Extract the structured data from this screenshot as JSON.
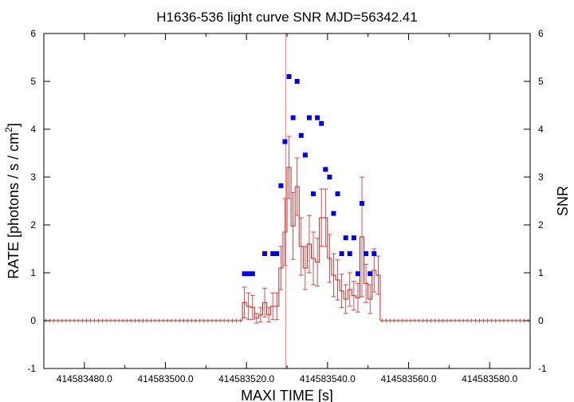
{
  "chart_data": {
    "type": "scatter",
    "title": "H1636-536 light curve  SNR MJD=56342.41",
    "xlabel": "MAXI TIME [s]",
    "ylabel": "RATE [photons / s / cm",
    "ylabel_superscript": "2",
    "ylabel_suffix": "]",
    "y2label": "SNR",
    "xlim": [
      414583470,
      414583590
    ],
    "ylim": [
      -1,
      6
    ],
    "y2lim": [
      -1,
      6
    ],
    "x_ticks": [
      414583480,
      414583500,
      414583520,
      414583540,
      414583560,
      414583580
    ],
    "x_tick_labels": [
      "414583480.0",
      "414583500.0",
      "414583520.0",
      "414583540.0",
      "414583560.0",
      "414583580.0"
    ],
    "y_ticks": [
      -1,
      0,
      1,
      2,
      3,
      4,
      5,
      6
    ],
    "y_tick_labels": [
      "-1",
      "0",
      "1",
      "2",
      "3",
      "4",
      "5",
      "6"
    ],
    "y2_ticks": [
      -1,
      0,
      1,
      2,
      3,
      4,
      5,
      6
    ],
    "y2_tick_labels": [
      "-1",
      "0",
      "1",
      "2",
      "3",
      "4",
      "5",
      "6"
    ],
    "vline_x": 414583529.7,
    "colors": {
      "rate": "#cc2222",
      "snr": "#0000ee",
      "vline": "#ff8888",
      "axis": "#000000"
    },
    "rate_bin_width": 1.0,
    "rate_series": {
      "name": "",
      "x": [
        414583519.5,
        414583520.5,
        414583521.5,
        414583522.5,
        414583523.5,
        414583524.5,
        414583525.5,
        414583526.5,
        414583527.5,
        414583528.5,
        414583529.5,
        414583530.5,
        414583531.5,
        414583532.5,
        414583533.5,
        414583534.5,
        414583535.5,
        414583536.5,
        414583537.5,
        414583538.5,
        414583539.5,
        414583540.5,
        414583541.5,
        414583542.5,
        414583543.5,
        414583544.5,
        414583545.5,
        414583546.5,
        414583547.5,
        414583548.5,
        414583549.5,
        414583550.5,
        414583551.5,
        414583552.5
      ],
      "y": [
        0.38,
        0.3,
        0.28,
        0.05,
        0.12,
        0.38,
        0.12,
        0.3,
        0.3,
        1.1,
        1.85,
        3.2,
        1.98,
        2.8,
        1.55,
        1.1,
        1.6,
        1.3,
        1.22,
        2.15,
        2.15,
        1.3,
        0.95,
        0.85,
        0.62,
        0.45,
        0.65,
        0.52,
        0.48,
        1.75,
        0.78,
        0.45,
        1.05,
        0.95
      ],
      "err": [
        0.32,
        0.28,
        0.25,
        0.1,
        0.15,
        0.3,
        0.15,
        0.28,
        0.28,
        0.45,
        0.7,
        0.65,
        0.7,
        0.6,
        0.6,
        0.45,
        0.6,
        0.55,
        0.5,
        0.6,
        0.6,
        0.5,
        0.45,
        0.42,
        0.35,
        0.3,
        0.35,
        0.3,
        0.3,
        1.25,
        0.4,
        0.3,
        0.45,
        0.4
      ]
    },
    "baseline": {
      "x_start": 414583470,
      "x_end": 414583590,
      "y": 0.0,
      "err": 0.04,
      "gap_start": 414583519,
      "gap_end": 414583553
    },
    "snr_series": {
      "name": "",
      "x": [
        414583519.5,
        414583520.5,
        414583521.5,
        414583524.5,
        414583526.5,
        414583527.5,
        414583528.5,
        414583529.5,
        414583530.5,
        414583531.5,
        414583532.5,
        414583533.5,
        414583534.5,
        414583535.5,
        414583536.5,
        414583537.5,
        414583538.5,
        414583539.5,
        414583540.5,
        414583541.5,
        414583542.5,
        414583543.5,
        414583544.5,
        414583545.5,
        414583546.5,
        414583547.5,
        414583548.5,
        414583549.5,
        414583550.5,
        414583551.5
      ],
      "y": [
        0.98,
        0.98,
        0.98,
        1.4,
        1.4,
        1.4,
        2.82,
        3.74,
        5.1,
        4.24,
        5.0,
        3.87,
        3.46,
        4.24,
        2.65,
        4.24,
        4.12,
        3.16,
        3.0,
        2.24,
        2.65,
        1.4,
        1.73,
        1.4,
        1.73,
        0.98,
        2.45,
        1.4,
        0.98,
        1.4
      ]
    }
  }
}
